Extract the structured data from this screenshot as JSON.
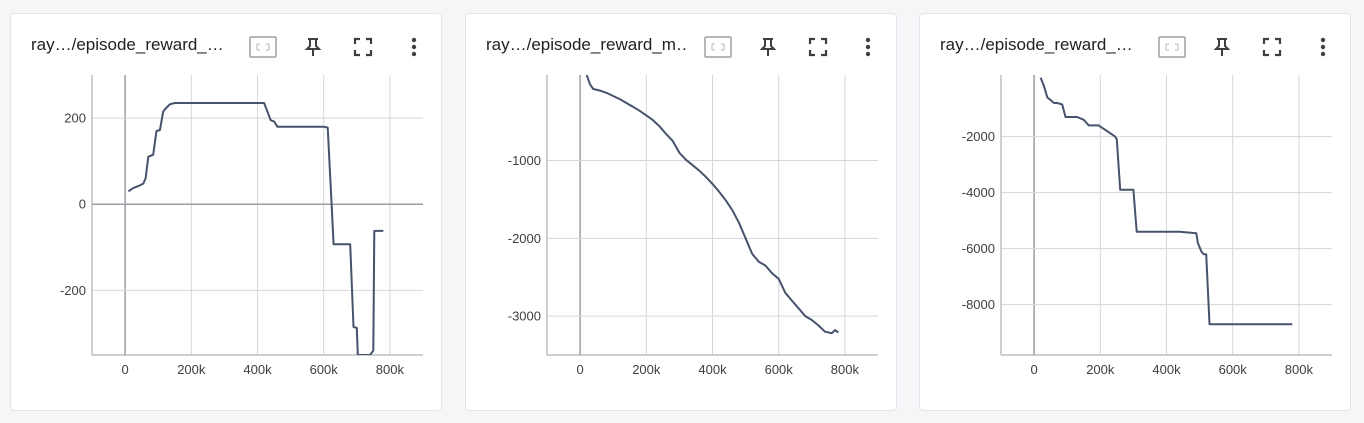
{
  "icons": {
    "fit": "fit-domain-icon",
    "pin": "pin-icon",
    "fullscreen": "fullscreen-icon",
    "more": "more-vert-icon"
  },
  "colors": {
    "line": "#46536a",
    "grid": "#d5d7da",
    "axis": "#9aa0a6",
    "zero_line": "#9aa0a6"
  },
  "cards": [
    {
      "title": "ray…/episode_reward_…"
    },
    {
      "title": "ray…/episode_reward_m…"
    },
    {
      "title": "ray…/episode_reward_…"
    }
  ],
  "chart_data": [
    {
      "type": "line",
      "title": "",
      "xlabel": "",
      "ylabel": "",
      "xlim": [
        -100000,
        900000
      ],
      "ylim": [
        -350,
        300
      ],
      "x_ticks": [
        0,
        200000,
        400000,
        600000,
        800000
      ],
      "x_tick_labels": [
        "0",
        "200k",
        "400k",
        "600k",
        "800k"
      ],
      "y_ticks": [
        200,
        0,
        -200
      ],
      "y_tick_labels": [
        "200",
        "0",
        "-200"
      ],
      "grid": true,
      "series": [
        {
          "x": [
            10000,
            25000,
            40000,
            55000,
            62000,
            70000,
            85000,
            95000,
            105000,
            115000,
            120000,
            135000,
            150000,
            200000,
            300000,
            420000,
            440000,
            450000,
            460000,
            470000,
            600000,
            612000,
            620000,
            630000,
            680000,
            690000,
            700000,
            703000,
            712000,
            740000,
            750000,
            753000,
            770000,
            780000
          ],
          "y": [
            30,
            38,
            42,
            48,
            60,
            110,
            115,
            170,
            172,
            215,
            220,
            232,
            235,
            235,
            235,
            235,
            195,
            192,
            180,
            180,
            180,
            178,
            60,
            -93,
            -93,
            -285,
            -287,
            -350,
            -350,
            -350,
            -340,
            -62,
            -62,
            -62
          ]
        }
      ]
    },
    {
      "type": "line",
      "title": "",
      "xlabel": "",
      "ylabel": "",
      "xlim": [
        -100000,
        900000
      ],
      "ylim": [
        -3500,
        100
      ],
      "x_ticks": [
        0,
        200000,
        400000,
        600000,
        800000
      ],
      "x_tick_labels": [
        "0",
        "200k",
        "400k",
        "600k",
        "800k"
      ],
      "y_ticks": [
        -1000,
        -2000,
        -3000
      ],
      "y_tick_labels": [
        "-1000",
        "-2000",
        "-3000"
      ],
      "grid": true,
      "series": [
        {
          "x": [
            20000,
            30000,
            40000,
            60000,
            80000,
            100000,
            120000,
            140000,
            160000,
            180000,
            200000,
            220000,
            240000,
            260000,
            280000,
            300000,
            320000,
            340000,
            360000,
            380000,
            400000,
            420000,
            440000,
            460000,
            480000,
            500000,
            520000,
            540000,
            560000,
            580000,
            600000,
            620000,
            640000,
            660000,
            680000,
            700000,
            720000,
            740000,
            760000,
            770000,
            780000
          ],
          "y": [
            100,
            -20,
            -80,
            -100,
            -130,
            -170,
            -210,
            -260,
            -310,
            -360,
            -420,
            -480,
            -560,
            -660,
            -750,
            -900,
            -990,
            -1060,
            -1130,
            -1210,
            -1300,
            -1400,
            -1510,
            -1640,
            -1800,
            -2000,
            -2200,
            -2300,
            -2350,
            -2450,
            -2520,
            -2700,
            -2800,
            -2900,
            -3000,
            -3050,
            -3120,
            -3200,
            -3220,
            -3180,
            -3210
          ]
        }
      ]
    },
    {
      "type": "line",
      "title": "",
      "xlabel": "",
      "ylabel": "",
      "xlim": [
        -100000,
        900000
      ],
      "ylim": [
        -9800,
        200
      ],
      "x_ticks": [
        0,
        200000,
        400000,
        600000,
        800000
      ],
      "x_tick_labels": [
        "0",
        "200k",
        "400k",
        "600k",
        "800k"
      ],
      "y_ticks": [
        -2000,
        -4000,
        -6000,
        -8000
      ],
      "y_tick_labels": [
        "-2000",
        "-4000",
        "-6000",
        "-8000"
      ],
      "grid": true,
      "series": [
        {
          "x": [
            20000,
            30000,
            40000,
            50000,
            60000,
            70000,
            85000,
            95000,
            105000,
            130000,
            150000,
            165000,
            190000,
            195000,
            245000,
            250000,
            260000,
            265000,
            300000,
            310000,
            390000,
            440000,
            490000,
            495000,
            505000,
            512000,
            520000,
            530000,
            650000,
            780000
          ],
          "y": [
            100,
            -200,
            -600,
            -700,
            -800,
            -800,
            -850,
            -1300,
            -1300,
            -1300,
            -1400,
            -1600,
            -1600,
            -1600,
            -2000,
            -2100,
            -3900,
            -3900,
            -3900,
            -5400,
            -5400,
            -5400,
            -5450,
            -5800,
            -6100,
            -6200,
            -6200,
            -8700,
            -8700,
            -8700
          ]
        }
      ]
    }
  ]
}
